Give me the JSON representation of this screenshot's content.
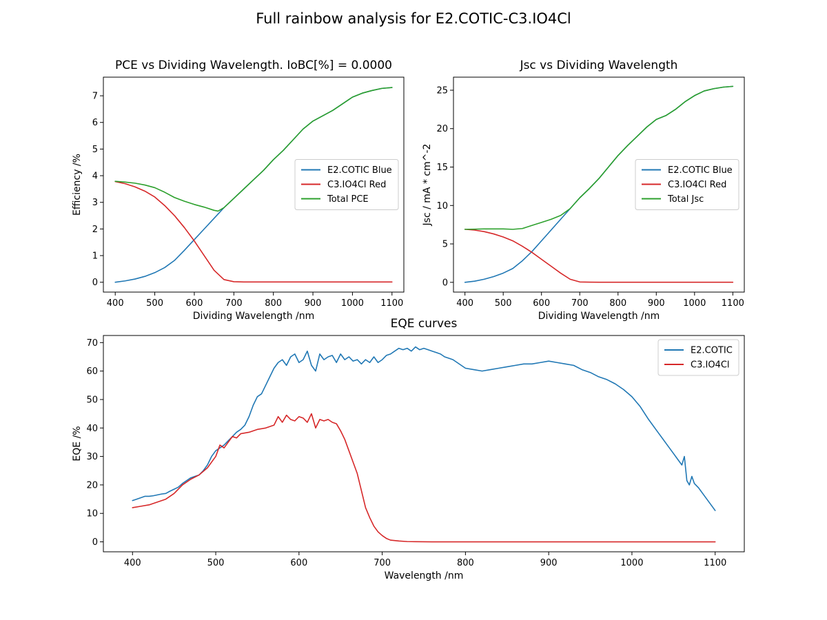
{
  "figure": {
    "title": "Full rainbow analysis for E2.COTIC-C3.IO4Cl"
  },
  "colors": {
    "blue": "#1f77b4",
    "red": "#d62728",
    "green": "#2ca02c"
  },
  "chart_data": [
    {
      "id": "pce",
      "type": "line",
      "title": "PCE vs Dividing Wavelength. IoBC[%] = 0.0000",
      "xlabel": "Dividing Wavelength /nm",
      "ylabel": "Efficiency /%",
      "xlim": [
        370,
        1130
      ],
      "ylim": [
        -0.37,
        7.7
      ],
      "xticks": [
        400,
        500,
        600,
        700,
        800,
        900,
        1000,
        1100
      ],
      "yticks": [
        0,
        1,
        2,
        3,
        4,
        5,
        6,
        7
      ],
      "legend": "center-right",
      "series": [
        {
          "name": "E2.COTIC Blue",
          "color": "#1f77b4",
          "x": [
            400,
            425,
            450,
            475,
            500,
            525,
            550,
            575,
            600,
            625,
            650,
            675,
            700,
            725,
            750,
            775,
            800,
            825,
            850,
            875,
            900,
            925,
            950,
            975,
            1000,
            1025,
            1050,
            1075,
            1100
          ],
          "y": [
            0.0,
            0.05,
            0.12,
            0.22,
            0.36,
            0.55,
            0.82,
            1.2,
            1.6,
            2.0,
            2.4,
            2.8,
            3.15,
            3.5,
            3.85,
            4.2,
            4.6,
            4.95,
            5.35,
            5.75,
            6.05,
            6.25,
            6.45,
            6.7,
            6.95,
            7.1,
            7.2,
            7.28,
            7.31
          ]
        },
        {
          "name": "C3.IO4Cl Red",
          "color": "#d62728",
          "x": [
            400,
            425,
            450,
            475,
            500,
            525,
            550,
            575,
            600,
            625,
            650,
            675,
            700,
            725,
            750,
            775,
            800,
            850,
            900,
            950,
            1000,
            1050,
            1100
          ],
          "y": [
            3.78,
            3.7,
            3.58,
            3.42,
            3.2,
            2.88,
            2.5,
            2.05,
            1.55,
            1.0,
            0.45,
            0.1,
            0.02,
            0.01,
            0.01,
            0.01,
            0.01,
            0.01,
            0.01,
            0.01,
            0.01,
            0.01,
            0.01
          ]
        },
        {
          "name": "Total PCE",
          "color": "#2ca02c",
          "x": [
            400,
            425,
            450,
            475,
            500,
            525,
            550,
            575,
            600,
            625,
            650,
            660,
            675,
            700,
            725,
            750,
            775,
            800,
            825,
            850,
            875,
            900,
            925,
            950,
            975,
            1000,
            1025,
            1050,
            1075,
            1100
          ],
          "y": [
            3.79,
            3.76,
            3.72,
            3.65,
            3.55,
            3.38,
            3.18,
            3.04,
            2.92,
            2.82,
            2.7,
            2.67,
            2.8,
            3.15,
            3.5,
            3.85,
            4.2,
            4.6,
            4.95,
            5.35,
            5.75,
            6.05,
            6.25,
            6.45,
            6.7,
            6.95,
            7.1,
            7.2,
            7.28,
            7.31
          ]
        }
      ]
    },
    {
      "id": "jsc",
      "type": "line",
      "title": "Jsc vs Dividing Wavelength",
      "xlabel": "Dividing Wavelength /nm",
      "ylabel": "Jsc / mA * cm^-2",
      "xlim": [
        370,
        1130
      ],
      "ylim": [
        -1.27,
        26.7
      ],
      "xticks": [
        400,
        500,
        600,
        700,
        800,
        900,
        1000,
        1100
      ],
      "yticks": [
        0,
        5,
        10,
        15,
        20,
        25
      ],
      "legend": "center-right",
      "series": [
        {
          "name": "E2.COTIC Blue",
          "color": "#1f77b4",
          "x": [
            400,
            425,
            450,
            475,
            500,
            525,
            550,
            575,
            600,
            625,
            650,
            675,
            700,
            725,
            750,
            775,
            800,
            825,
            850,
            875,
            900,
            925,
            950,
            975,
            1000,
            1025,
            1050,
            1075,
            1100
          ],
          "y": [
            0.0,
            0.15,
            0.4,
            0.75,
            1.2,
            1.8,
            2.8,
            4.0,
            5.4,
            6.8,
            8.2,
            9.6,
            11.0,
            12.2,
            13.5,
            15.0,
            16.5,
            17.8,
            19.0,
            20.2,
            21.2,
            21.7,
            22.5,
            23.5,
            24.3,
            24.9,
            25.2,
            25.4,
            25.5
          ]
        },
        {
          "name": "C3.IO4Cl Red",
          "color": "#d62728",
          "x": [
            400,
            425,
            450,
            475,
            500,
            525,
            550,
            575,
            600,
            625,
            650,
            675,
            700,
            725,
            750,
            800,
            850,
            900,
            950,
            1000,
            1050,
            1100
          ],
          "y": [
            6.9,
            6.8,
            6.6,
            6.3,
            5.9,
            5.4,
            4.7,
            3.9,
            3.0,
            2.1,
            1.2,
            0.4,
            0.05,
            0.02,
            0.01,
            0.01,
            0.01,
            0.01,
            0.01,
            0.01,
            0.01,
            0.01
          ]
        },
        {
          "name": "Total Jsc",
          "color": "#2ca02c",
          "x": [
            400,
            425,
            450,
            475,
            500,
            525,
            550,
            575,
            600,
            625,
            650,
            675,
            700,
            725,
            750,
            775,
            800,
            825,
            850,
            875,
            900,
            925,
            950,
            975,
            1000,
            1025,
            1050,
            1075,
            1100
          ],
          "y": [
            6.9,
            6.92,
            6.95,
            6.95,
            6.95,
            6.9,
            7.0,
            7.4,
            7.8,
            8.2,
            8.7,
            9.6,
            11.0,
            12.2,
            13.5,
            15.0,
            16.5,
            17.8,
            19.0,
            20.2,
            21.2,
            21.7,
            22.5,
            23.5,
            24.3,
            24.9,
            25.2,
            25.4,
            25.5
          ]
        }
      ]
    },
    {
      "id": "eqe",
      "type": "line",
      "title": "EQE curves",
      "xlabel": "Wavelength /nm",
      "ylabel": "EQE /%",
      "xlim": [
        365,
        1135
      ],
      "ylim": [
        -3.5,
        72.5
      ],
      "xticks": [
        400,
        500,
        600,
        700,
        800,
        900,
        1000,
        1100
      ],
      "yticks": [
        0,
        10,
        20,
        30,
        40,
        50,
        60,
        70
      ],
      "legend": "upper-right",
      "series": [
        {
          "name": "E2.COTIC",
          "color": "#1f77b4",
          "x": [
            400,
            405,
            410,
            415,
            420,
            425,
            430,
            435,
            440,
            445,
            450,
            455,
            460,
            465,
            470,
            475,
            480,
            485,
            490,
            495,
            500,
            505,
            510,
            515,
            520,
            525,
            530,
            535,
            540,
            545,
            550,
            555,
            560,
            565,
            570,
            575,
            580,
            585,
            590,
            595,
            600,
            605,
            610,
            615,
            620,
            625,
            630,
            635,
            640,
            645,
            650,
            655,
            660,
            665,
            670,
            675,
            680,
            685,
            690,
            695,
            700,
            705,
            710,
            715,
            720,
            725,
            730,
            735,
            740,
            745,
            750,
            755,
            760,
            765,
            770,
            775,
            780,
            785,
            790,
            795,
            800,
            810,
            820,
            830,
            840,
            850,
            860,
            870,
            880,
            890,
            900,
            910,
            920,
            930,
            940,
            950,
            960,
            970,
            980,
            990,
            1000,
            1010,
            1020,
            1030,
            1040,
            1045,
            1050,
            1055,
            1060,
            1063,
            1066,
            1069,
            1072,
            1075,
            1080,
            1085,
            1090,
            1095,
            1100
          ],
          "y": [
            14.5,
            15.0,
            15.5,
            16.0,
            16.0,
            16.2,
            16.5,
            16.8,
            17.0,
            17.8,
            18.5,
            19.2,
            20.5,
            21.5,
            22.5,
            23.0,
            23.5,
            25.0,
            27.0,
            30.0,
            32.0,
            33.0,
            34.0,
            35.5,
            37.0,
            38.5,
            39.5,
            41.0,
            44.0,
            48.0,
            51.0,
            52.0,
            55.0,
            58.0,
            61.0,
            63.0,
            64.0,
            62.0,
            65.0,
            66.0,
            63.0,
            64.0,
            67.0,
            62.0,
            60.0,
            66.0,
            64.0,
            65.0,
            65.5,
            63.0,
            66.0,
            64.0,
            65.0,
            63.5,
            64.0,
            62.5,
            64.0,
            63.0,
            65.0,
            63.0,
            64.0,
            65.5,
            66.0,
            67.0,
            68.0,
            67.5,
            68.0,
            67.0,
            68.5,
            67.5,
            68.0,
            67.5,
            67.0,
            66.5,
            66.0,
            65.0,
            64.5,
            64.0,
            63.0,
            62.0,
            61.0,
            60.5,
            60.0,
            60.5,
            61.0,
            61.5,
            62.0,
            62.5,
            62.5,
            63.0,
            63.5,
            63.0,
            62.5,
            62.0,
            60.5,
            59.5,
            58.0,
            57.0,
            55.5,
            53.5,
            51.0,
            47.5,
            43.0,
            39.0,
            35.0,
            33.0,
            31.0,
            29.0,
            27.0,
            30.0,
            21.5,
            20.0,
            23.0,
            20.5,
            19.0,
            17.0,
            15.0,
            13.0,
            11.0
          ]
        },
        {
          "name": "C3.IO4Cl",
          "color": "#d62728",
          "x": [
            400,
            410,
            420,
            430,
            440,
            450,
            460,
            470,
            480,
            490,
            500,
            505,
            510,
            515,
            520,
            525,
            530,
            540,
            550,
            560,
            570,
            575,
            580,
            585,
            590,
            595,
            600,
            605,
            610,
            615,
            620,
            625,
            630,
            635,
            640,
            645,
            650,
            655,
            660,
            665,
            670,
            675,
            680,
            685,
            690,
            695,
            700,
            705,
            710,
            720,
            730,
            740,
            760,
            800,
            850,
            900,
            950,
            1000,
            1050,
            1100
          ],
          "y": [
            12.0,
            12.5,
            13.0,
            14.0,
            15.0,
            17.0,
            20.0,
            22.0,
            23.5,
            26.0,
            30.0,
            34.0,
            33.0,
            35.0,
            37.0,
            36.5,
            38.0,
            38.5,
            39.5,
            40.0,
            41.0,
            44.0,
            42.0,
            44.5,
            43.0,
            42.5,
            44.0,
            43.5,
            42.0,
            45.0,
            40.0,
            43.0,
            42.5,
            43.0,
            42.0,
            41.5,
            39.0,
            36.0,
            32.0,
            28.0,
            24.0,
            18.0,
            12.0,
            8.5,
            5.5,
            3.5,
            2.2,
            1.2,
            0.6,
            0.3,
            0.1,
            0.05,
            0.0,
            0.0,
            0.0,
            0.0,
            0.0,
            0.0,
            0.0,
            0.0
          ]
        }
      ]
    }
  ]
}
